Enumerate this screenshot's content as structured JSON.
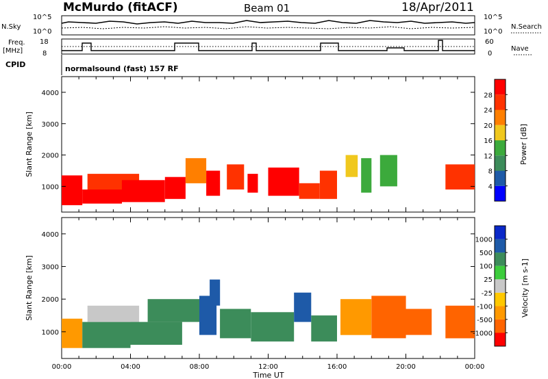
{
  "header": {
    "station": "McMurdo (fitACF)",
    "beam": "Beam 01",
    "date": "18/Apr/2011"
  },
  "panels_top": {
    "nsky_label": "N.Sky",
    "nsearch_label": "N.Search",
    "nsky_ticks": [
      "10^5",
      "10^0"
    ],
    "nsearch_ticks": [
      "10^5",
      "10^0"
    ],
    "freq_label": "Freq.",
    "freq_unit": "[MHz]",
    "freq_ticks": [
      "18",
      "8"
    ],
    "nave_label": "Nave",
    "nave_ticks": [
      "60",
      "0"
    ],
    "cpid_label": "CPID",
    "cpid_text": "normalsound (fast) 157 RF"
  },
  "colors": {
    "power": [
      "#0000ff",
      "#1e5aa8",
      "#3c8c5a",
      "#3caa3c",
      "#f0c81e",
      "#ff7f00",
      "#ff3200",
      "#ff0000"
    ],
    "velocity": [
      "#ff0000",
      "#ff6400",
      "#ff9900",
      "#ffc800",
      "#c8c8c8",
      "#3ccc3c",
      "#3c8c5a",
      "#1e5aa8",
      "#0a28c8"
    ]
  },
  "chart_data": [
    {
      "type": "heatmap",
      "quantity": "Power",
      "ylabel": "Slant Range [km]",
      "yticks": [
        "1000",
        "2000",
        "3000",
        "4000"
      ],
      "ylim": [
        180,
        4500
      ],
      "xlim_hours": [
        0,
        24
      ],
      "colorbar_label": "Power [dB]",
      "colorbar_ticks": [
        "4",
        "8",
        "12",
        "16",
        "20",
        "24",
        "28"
      ],
      "blocks": [
        {
          "t0": 0.0,
          "t1": 1.2,
          "r0": 400,
          "r1": 1350,
          "v": 30
        },
        {
          "t0": 1.2,
          "t1": 3.5,
          "r0": 450,
          "r1": 900,
          "v": 30
        },
        {
          "t0": 1.5,
          "t1": 4.5,
          "r0": 900,
          "r1": 1400,
          "v": 24
        },
        {
          "t0": 3.5,
          "t1": 6.0,
          "r0": 500,
          "r1": 1200,
          "v": 28
        },
        {
          "t0": 6.0,
          "t1": 7.2,
          "r0": 600,
          "r1": 1300,
          "v": 30
        },
        {
          "t0": 7.2,
          "t1": 8.4,
          "r0": 1100,
          "r1": 1900,
          "v": 22
        },
        {
          "t0": 8.4,
          "t1": 9.2,
          "r0": 700,
          "r1": 1500,
          "v": 28
        },
        {
          "t0": 9.6,
          "t1": 10.6,
          "r0": 900,
          "r1": 1700,
          "v": 26
        },
        {
          "t0": 10.8,
          "t1": 11.4,
          "r0": 800,
          "r1": 1400,
          "v": 29
        },
        {
          "t0": 12.0,
          "t1": 13.8,
          "r0": 700,
          "r1": 1600,
          "v": 30
        },
        {
          "t0": 13.8,
          "t1": 15.0,
          "r0": 600,
          "r1": 1100,
          "v": 26
        },
        {
          "t0": 15.0,
          "t1": 16.0,
          "r0": 600,
          "r1": 1500,
          "v": 24
        },
        {
          "t0": 16.5,
          "t1": 17.2,
          "r0": 1300,
          "r1": 2000,
          "v": 16
        },
        {
          "t0": 17.4,
          "t1": 18.0,
          "r0": 800,
          "r1": 1900,
          "v": 14
        },
        {
          "t0": 18.5,
          "t1": 19.5,
          "r0": 1000,
          "r1": 2000,
          "v": 12
        },
        {
          "t0": 22.3,
          "t1": 24.0,
          "r0": 900,
          "r1": 1700,
          "v": 27
        }
      ]
    },
    {
      "type": "heatmap",
      "quantity": "Velocity",
      "ylabel": "Slant Range [km]",
      "yticks": [
        "1000",
        "2000",
        "3000",
        "4000"
      ],
      "ylim": [
        180,
        4500
      ],
      "xlim_hours": [
        0,
        24
      ],
      "xlabel": "Time UT",
      "xticks": [
        "00:00",
        "04:00",
        "08:00",
        "12:00",
        "16:00",
        "20:00",
        "00:00"
      ],
      "colorbar_label": "Velocity [m s-1]",
      "colorbar_ticks": [
        "1000",
        "500",
        "100",
        "25",
        "-25",
        "-100",
        "-500",
        "-1000"
      ],
      "blocks": [
        {
          "t0": 0.0,
          "t1": 1.2,
          "r0": 500,
          "r1": 1400,
          "v": -100
        },
        {
          "t0": 1.2,
          "t1": 4.0,
          "r0": 500,
          "r1": 1300,
          "v": 200
        },
        {
          "t0": 1.5,
          "t1": 4.5,
          "r0": 1300,
          "r1": 1800,
          "v": 0
        },
        {
          "t0": 4.0,
          "t1": 7.0,
          "r0": 600,
          "r1": 1300,
          "v": 400
        },
        {
          "t0": 5.0,
          "t1": 8.0,
          "r0": 1300,
          "r1": 2000,
          "v": 300
        },
        {
          "t0": 8.0,
          "t1": 9.0,
          "r0": 900,
          "r1": 2100,
          "v": 600
        },
        {
          "t0": 8.6,
          "t1": 9.2,
          "r0": 1800,
          "r1": 2600,
          "v": 900
        },
        {
          "t0": 9.2,
          "t1": 11.0,
          "r0": 800,
          "r1": 1700,
          "v": 300
        },
        {
          "t0": 11.0,
          "t1": 13.5,
          "r0": 700,
          "r1": 1600,
          "v": 400
        },
        {
          "t0": 13.5,
          "t1": 14.5,
          "r0": 1300,
          "r1": 2200,
          "v": 600
        },
        {
          "t0": 14.5,
          "t1": 16.0,
          "r0": 700,
          "r1": 1500,
          "v": 300
        },
        {
          "t0": 16.2,
          "t1": 18.0,
          "r0": 900,
          "r1": 2000,
          "v": -100
        },
        {
          "t0": 18.0,
          "t1": 20.0,
          "r0": 800,
          "r1": 2100,
          "v": -400
        },
        {
          "t0": 20.0,
          "t1": 21.5,
          "r0": 900,
          "r1": 1700,
          "v": -200
        },
        {
          "t0": 22.3,
          "t1": 24.0,
          "r0": 800,
          "r1": 1800,
          "v": -300
        }
      ]
    }
  ]
}
